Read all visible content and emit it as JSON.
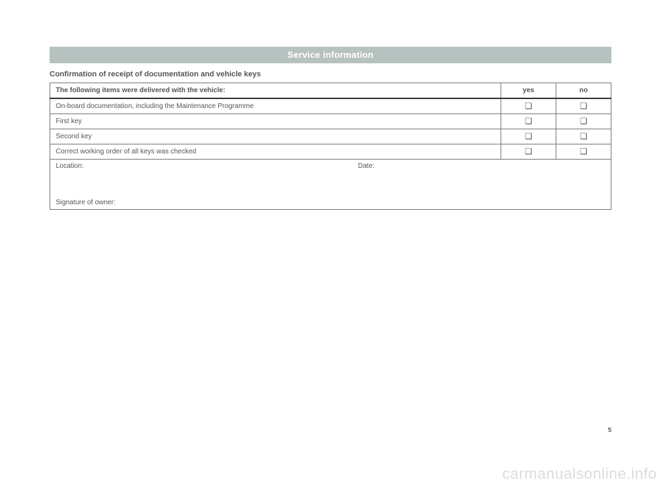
{
  "colors": {
    "header_bg": "#b6c2c0",
    "header_text": "#ffffff",
    "body_text": "#555555",
    "border": "#777777",
    "thick_border": "#333333",
    "watermark": "#dcdcdc",
    "page_bg": "#ffffff"
  },
  "typography": {
    "header_fontsize_pt": 10,
    "subtitle_fontsize_pt": 8.5,
    "table_fontsize_pt": 7.5,
    "watermark_fontsize_pt": 16
  },
  "header": {
    "title": "Service information"
  },
  "subtitle": "Confirmation of receipt of documentation and vehicle keys",
  "table": {
    "columns": [
      {
        "label": "The following items were delivered with the vehicle:",
        "align": "left",
        "width_pct": 80
      },
      {
        "label": "yes",
        "align": "center",
        "width_pct": 10
      },
      {
        "label": "no",
        "align": "center",
        "width_pct": 10
      }
    ],
    "rows": [
      {
        "label": "On-board documentation, including the Maintenance Programme",
        "yes": "❏",
        "no": "❏"
      },
      {
        "label": "First key",
        "yes": "❏",
        "no": "❏"
      },
      {
        "label": "Second key",
        "yes": "❏",
        "no": "❏"
      },
      {
        "label": "Correct working order of all keys was checked",
        "yes": "❏",
        "no": "❏"
      }
    ],
    "signature_block": {
      "location_label": "Location:",
      "date_label": "Date:",
      "signature_label": "Signature of owner:"
    }
  },
  "page_number": "5",
  "watermark": "carmanualsonline.info"
}
